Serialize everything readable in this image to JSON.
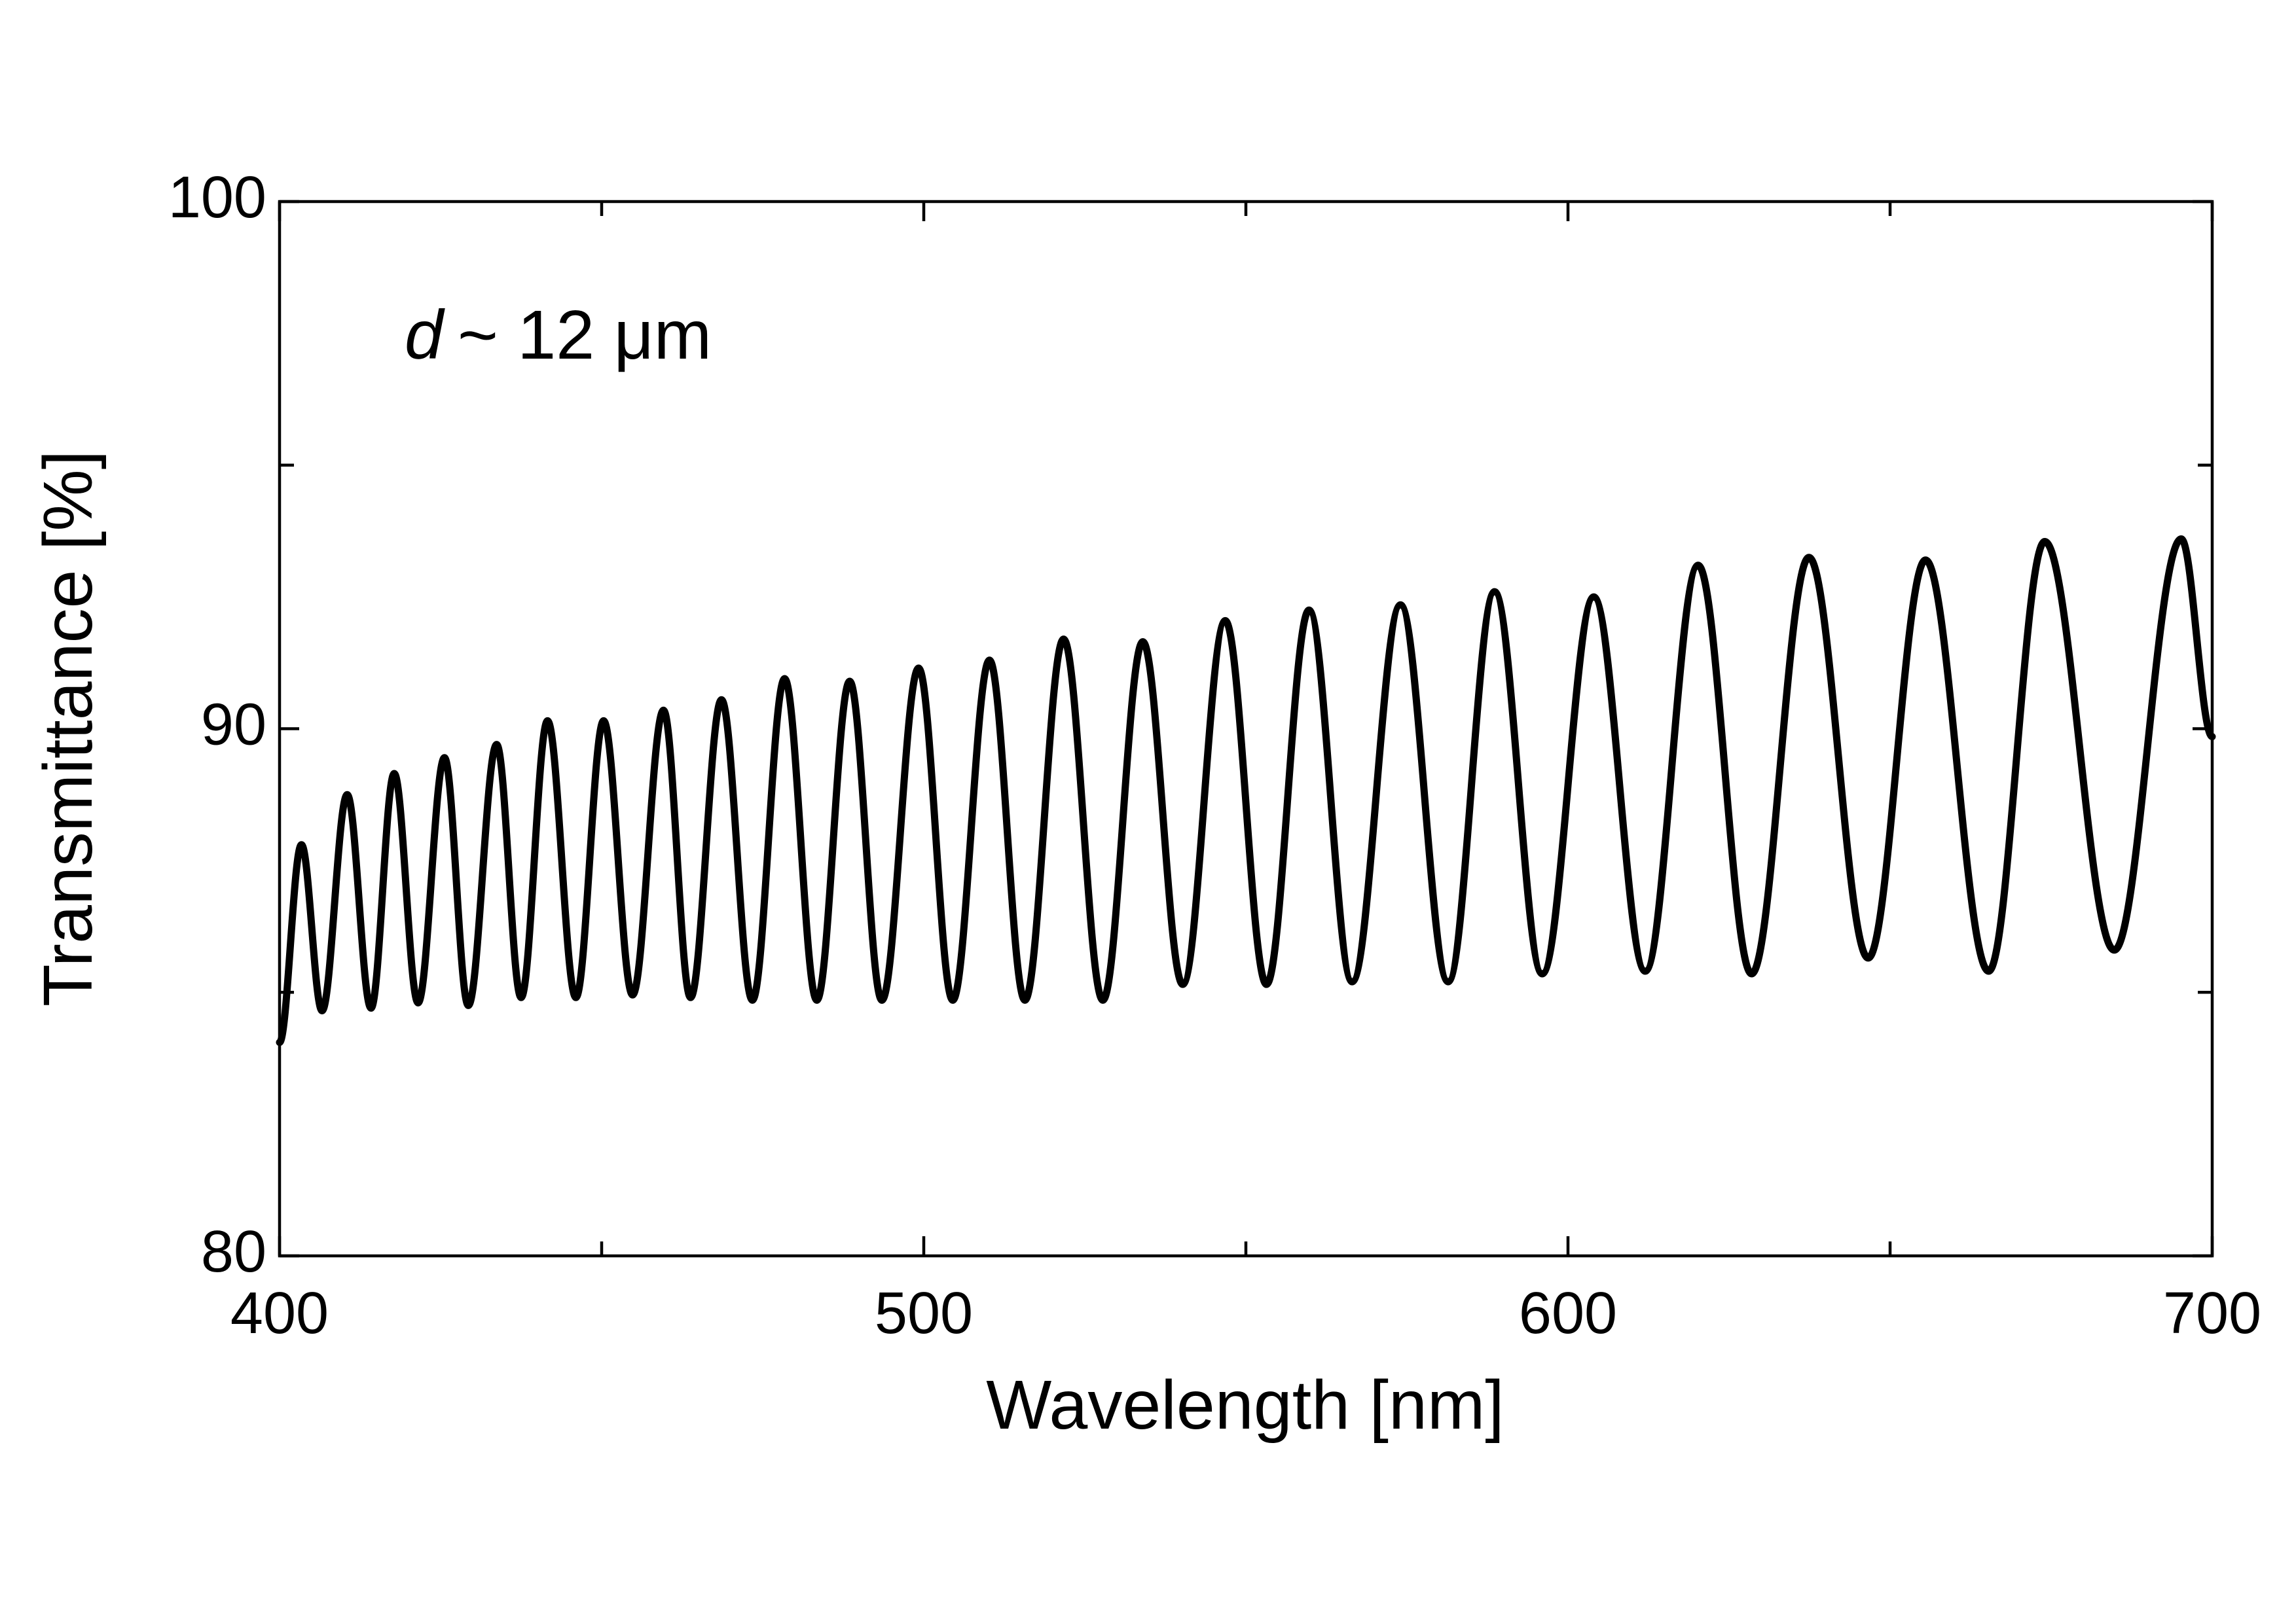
{
  "chart_data": {
    "type": "line",
    "xlabel": "Wavelength [nm]",
    "ylabel": "Transmittance [%]",
    "annotation": {
      "variable": "d",
      "text": "~ 12 μm"
    },
    "xlim": [
      400,
      700
    ],
    "ylim": [
      80,
      100
    ],
    "xticks": [
      400,
      500,
      600,
      700
    ],
    "yticks": [
      80,
      90,
      100
    ],
    "xminorticks": [
      450,
      550,
      650
    ],
    "yminorticks": [
      85,
      95
    ],
    "series": [
      {
        "color": "#000000",
        "x": [
          400,
          403.4,
          406.6,
          410.5,
          414.2,
          417.8,
          421.5,
          425.6,
          429.3,
          433.7,
          437.5,
          441.6,
          446,
          450.3,
          454.8,
          459.6,
          463.8,
          468.6,
          473.4,
          478.4,
          483.4,
          488.5,
          493.5,
          499.2,
          504.5,
          510.2,
          515.7,
          521.7,
          527.8,
          534,
          540.2,
          546.8,
          553.2,
          559.8,
          566.5,
          574,
          581.4,
          588.6,
          596,
          604,
          612,
          620.2,
          628.5,
          637.4,
          646.6,
          655.5,
          665.3,
          674,
          684.8,
          695.2,
          700
        ],
        "values": [
          84.05,
          87.8,
          84.65,
          88.75,
          84.7,
          89.15,
          84.8,
          89.45,
          84.75,
          89.7,
          84.9,
          90.15,
          84.9,
          90.15,
          84.95,
          90.35,
          84.9,
          90.55,
          84.85,
          90.95,
          84.85,
          90.9,
          84.85,
          91.15,
          84.85,
          91.3,
          84.85,
          91.7,
          84.85,
          91.65,
          85.15,
          92.05,
          85.15,
          92.25,
          85.2,
          92.35,
          85.2,
          92.6,
          85.35,
          92.5,
          85.4,
          93.1,
          85.35,
          93.25,
          85.65,
          93.2,
          85.4,
          93.55,
          85.8,
          93.6,
          89.85
        ]
      }
    ]
  }
}
